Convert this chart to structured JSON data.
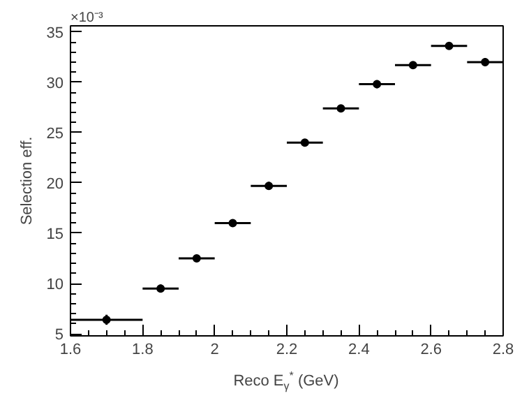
{
  "chart_data": {
    "type": "scatter",
    "xlabel": "Reco E$_{γ}$$^{*}$ (GeV)",
    "ylabel": "Selection eff.",
    "annotations": [
      "×10⁻³"
    ],
    "x": [
      1.7,
      1.85,
      1.95,
      2.05,
      2.15,
      2.25,
      2.35,
      2.45,
      2.55,
      2.65,
      2.75
    ],
    "values": [
      6.4,
      9.5,
      12.5,
      16.0,
      19.7,
      24.0,
      27.4,
      29.8,
      31.7,
      33.6,
      32.0
    ],
    "errors": [
      0.5,
      0.4,
      0.3,
      0.35,
      0.4,
      0.35,
      0.3,
      0.4,
      0.35,
      0.3,
      0.4
    ],
    "xerrors": [
      0.1,
      0.05,
      0.05,
      0.05,
      0.05,
      0.05,
      0.05,
      0.05,
      0.05,
      0.05,
      0.05
    ],
    "color": "#000000",
    "marker": "circle",
    "grid": false,
    "xlim": [
      1.6,
      2.8
    ],
    "xticks": [
      1.6,
      1.8,
      {
        "value": 2.0,
        "label": "2"
      },
      2.2,
      2.4,
      2.6,
      2.8
    ],
    "ylim": [
      4.8,
      35.6
    ],
    "yticks": [
      5,
      10,
      15,
      20,
      25,
      30,
      35
    ]
  }
}
